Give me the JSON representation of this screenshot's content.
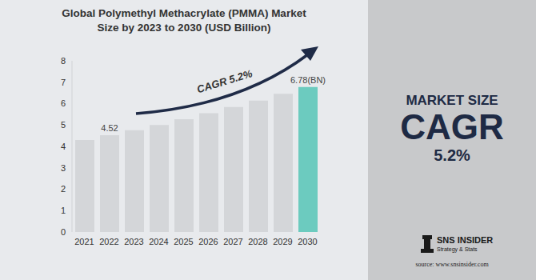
{
  "chart_data": {
    "type": "bar",
    "title": "Global Polymethyl Methacrylate (PMMA) Market Size by 2023 to 2030 (USD Billion)",
    "categories": [
      "2021",
      "2022",
      "2023",
      "2024",
      "2025",
      "2026",
      "2027",
      "2028",
      "2029",
      "2030"
    ],
    "values": [
      4.3,
      4.52,
      4.76,
      5.0,
      5.27,
      5.55,
      5.84,
      6.14,
      6.46,
      6.78
    ],
    "value_labels": [
      null,
      "4.52",
      null,
      null,
      null,
      null,
      null,
      null,
      null,
      "6.78(BN)"
    ],
    "data_labels": true,
    "colors": [
      "#d4d6d9",
      "#d4d6d9",
      "#d4d6d9",
      "#d4d6d9",
      "#d4d6d9",
      "#d4d6d9",
      "#d4d6d9",
      "#d4d6d9",
      "#d4d6d9",
      "#6ccbbf"
    ],
    "ylim": [
      0,
      8
    ],
    "yticks": [
      0,
      1,
      2,
      3,
      4,
      5,
      6,
      7,
      8
    ],
    "grid": false,
    "annotations": [
      "CAGR 5.2%"
    ]
  },
  "panel": {
    "heading": "MARKET SIZE",
    "metric": "CAGR",
    "metric_value": "5.2%",
    "brand": "SNS INSIDER",
    "tagline": "Strategy & Stats",
    "source": "source: www.snsinsider.com"
  }
}
